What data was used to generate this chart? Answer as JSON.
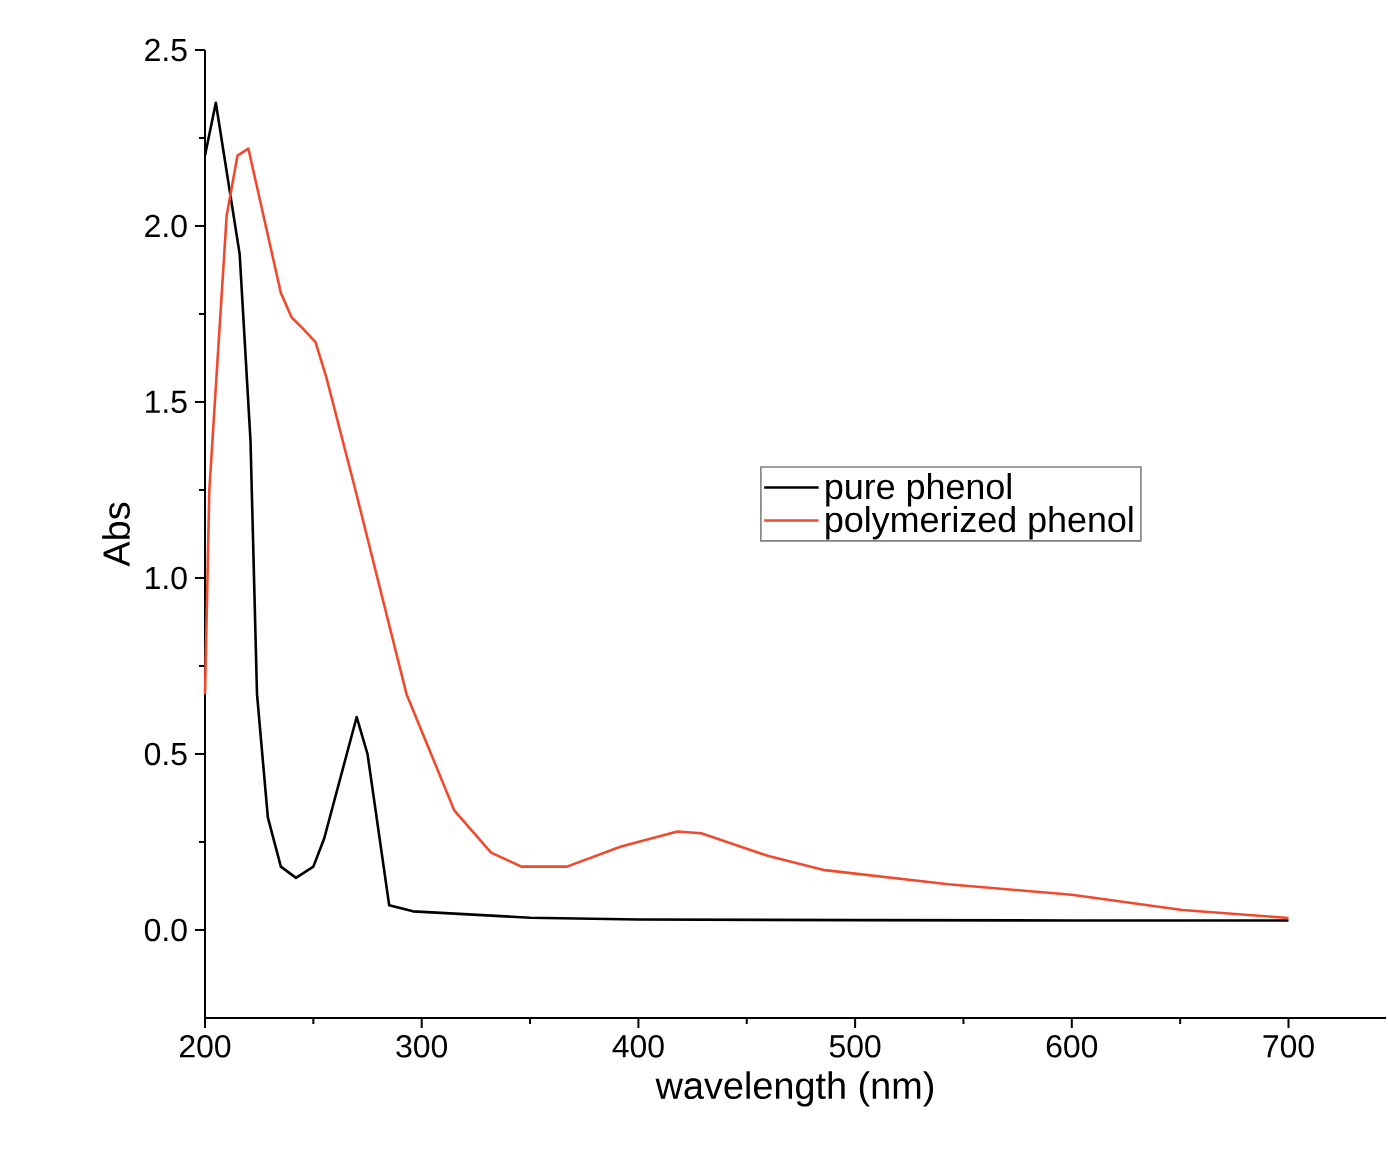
{
  "chart_data": {
    "type": "line",
    "xlabel": "wavelength (nm)",
    "ylabel": "Abs",
    "xlim": [
      200,
      745
    ],
    "ylim": [
      -0.25,
      2.5
    ],
    "xticks": [
      200,
      300,
      400,
      500,
      600,
      700
    ],
    "yticks": [
      {
        "value": 0,
        "label": "0.0"
      },
      0.5,
      {
        "value": 1,
        "label": "1.0"
      },
      1.5,
      {
        "value": 2,
        "label": "2.0"
      },
      2.5
    ],
    "legend": "right",
    "grid": false,
    "marker": "none",
    "line_style": "solid",
    "series": [
      {
        "name": "pure phenol",
        "color": "#000000",
        "x": [
          200,
          205,
          216,
          221,
          224,
          229,
          235,
          242,
          250,
          255,
          270,
          275,
          285,
          296,
          350,
          400,
          500,
          600,
          700
        ],
        "values": [
          2.2,
          2.35,
          1.92,
          1.39,
          0.67,
          0.32,
          0.18,
          0.148,
          0.18,
          0.26,
          0.605,
          0.5,
          0.07,
          0.053,
          0.035,
          0.03,
          0.028,
          0.027,
          0.027
        ]
      },
      {
        "name": "polymerized phenol",
        "color": "#f04a2e",
        "x": [
          200,
          202,
          210,
          215,
          220,
          235,
          240,
          245,
          251,
          256,
          269,
          282,
          293,
          315,
          332,
          346,
          367,
          392,
          418,
          429,
          460,
          486,
          543,
          600,
          651,
          700
        ],
        "values": [
          0.67,
          1.25,
          2.03,
          2.2,
          2.22,
          1.81,
          1.74,
          1.71,
          1.67,
          1.57,
          1.26,
          0.94,
          0.67,
          0.34,
          0.22,
          0.18,
          0.18,
          0.237,
          0.28,
          0.275,
          0.21,
          0.17,
          0.13,
          0.1,
          0.057,
          0.034
        ]
      }
    ]
  }
}
